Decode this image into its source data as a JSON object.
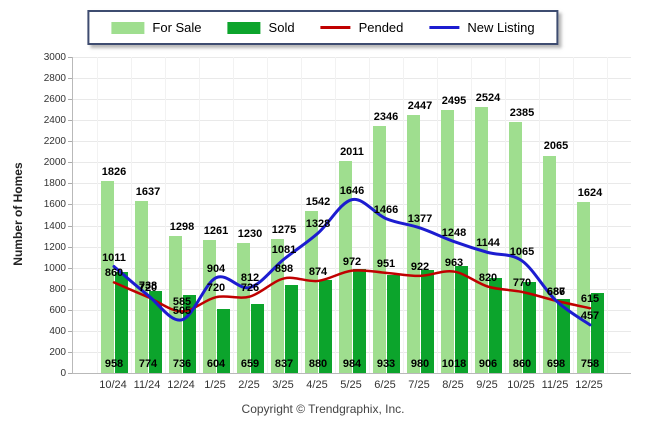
{
  "legend": {
    "items": [
      {
        "label": "For Sale",
        "swatch": "bar",
        "color": "#9FDE8F"
      },
      {
        "label": "Sold",
        "swatch": "bar",
        "color": "#0CA42C"
      },
      {
        "label": "Pended",
        "swatch": "line",
        "color": "#C00000"
      },
      {
        "label": "New Listing",
        "swatch": "line",
        "color": "#1C1CD0"
      }
    ]
  },
  "chart_data": {
    "type": "bar",
    "subtype": "grouped bars with overlaid smooth lines",
    "title": "",
    "xlabel": "",
    "ylabel": "Number of Homes",
    "ylim": [
      0,
      3000
    ],
    "ytick_step": 200,
    "grid": true,
    "legend_position": "top",
    "categories": [
      "10/24",
      "11/24",
      "12/24",
      "1/25",
      "2/25",
      "3/25",
      "4/25",
      "5/25",
      "6/25",
      "7/25",
      "8/25",
      "9/25",
      "10/25",
      "11/25",
      "12/25"
    ],
    "series": [
      {
        "name": "For Sale",
        "type": "bar",
        "color": "#9FDE8F",
        "values": [
          1826,
          1637,
          1298,
          1261,
          1230,
          1275,
          1542,
          2011,
          2346,
          2447,
          2495,
          2524,
          2385,
          2065,
          1624
        ]
      },
      {
        "name": "Sold",
        "type": "bar",
        "color": "#0CA42C",
        "values": [
          958,
          774,
          736,
          604,
          659,
          837,
          880,
          984,
          933,
          980,
          1018,
          906,
          860,
          698,
          758
        ]
      },
      {
        "name": "Pended",
        "type": "line",
        "color": "#C00000",
        "values": [
          860,
          720,
          585,
          720,
          726,
          898,
          874,
          972,
          951,
          922,
          963,
          820,
          770,
          686,
          615
        ]
      },
      {
        "name": "New Listing",
        "type": "line",
        "color": "#1C1CD0",
        "values": [
          1011,
          738,
          505,
          904,
          812,
          1081,
          1328,
          1646,
          1466,
          1377,
          1248,
          1144,
          1065,
          687,
          457
        ]
      }
    ]
  },
  "footer": {
    "text": "Copyright © Trendgraphix, Inc."
  }
}
